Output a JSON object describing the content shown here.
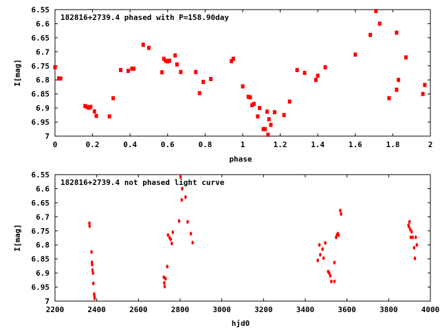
{
  "chart_data": [
    {
      "type": "scatter",
      "title": "182816+2739.4 phased with P=158.90day",
      "xlabel": "phase",
      "ylabel": "I[mag]",
      "xlim": [
        0,
        2
      ],
      "ylim": [
        7,
        6.55
      ],
      "y_inverted": true,
      "grid": false,
      "legend": "none",
      "xticks": [
        0,
        0.2,
        0.4,
        0.6,
        0.8,
        1,
        1.2,
        1.4,
        1.6,
        1.8,
        2
      ],
      "xtick_labels": [
        "0",
        "0.2",
        "0.4",
        "0.6",
        "0.8",
        "1",
        "1.2",
        "1.4",
        "1.6",
        "1.8",
        "2"
      ],
      "yticks": [
        6.55,
        6.6,
        6.65,
        6.7,
        6.75,
        6.8,
        6.85,
        6.9,
        6.95,
        7
      ],
      "ytick_labels": [
        "6.55",
        "6.6",
        "6.65",
        "6.7",
        "6.75",
        "6.8",
        "6.85",
        "6.9",
        "6.95",
        "7"
      ],
      "marker": "filled-square",
      "color": "#ff0000",
      "points": [
        [
          0.0,
          6.755
        ],
        [
          0.02,
          6.795
        ],
        [
          0.03,
          6.795
        ],
        [
          0.16,
          6.893
        ],
        [
          0.17,
          6.896
        ],
        [
          0.18,
          6.899
        ],
        [
          0.19,
          6.896
        ],
        [
          0.21,
          6.912
        ],
        [
          0.22,
          6.928
        ],
        [
          0.29,
          6.93
        ],
        [
          0.31,
          6.865
        ],
        [
          0.35,
          6.765
        ],
        [
          0.39,
          6.768
        ],
        [
          0.41,
          6.76
        ],
        [
          0.42,
          6.76
        ],
        [
          0.47,
          6.675
        ],
        [
          0.5,
          6.686
        ],
        [
          0.57,
          6.773
        ],
        [
          0.58,
          6.725
        ],
        [
          0.59,
          6.732
        ],
        [
          0.6,
          6.734
        ],
        [
          0.61,
          6.732
        ],
        [
          0.64,
          6.713
        ],
        [
          0.65,
          6.745
        ],
        [
          0.67,
          6.772
        ],
        [
          0.75,
          6.772
        ],
        [
          0.77,
          6.847
        ],
        [
          0.79,
          6.807
        ],
        [
          0.83,
          6.797
        ],
        [
          0.94,
          6.733
        ],
        [
          0.95,
          6.725
        ],
        [
          1.0,
          6.823
        ],
        [
          1.03,
          6.86
        ],
        [
          1.04,
          6.862
        ],
        [
          1.05,
          6.89
        ],
        [
          1.06,
          6.885
        ],
        [
          1.08,
          6.93
        ],
        [
          1.09,
          6.9
        ],
        [
          1.11,
          6.975
        ],
        [
          1.12,
          6.975
        ],
        [
          1.13,
          6.913
        ],
        [
          1.135,
          6.995
        ],
        [
          1.14,
          6.94
        ],
        [
          1.15,
          6.96
        ],
        [
          1.17,
          6.915
        ],
        [
          1.22,
          6.925
        ],
        [
          1.25,
          6.877
        ],
        [
          1.29,
          6.765
        ],
        [
          1.33,
          6.775
        ],
        [
          1.39,
          6.8
        ],
        [
          1.4,
          6.785
        ],
        [
          1.44,
          6.755
        ],
        [
          1.6,
          6.71
        ],
        [
          1.68,
          6.64
        ],
        [
          1.71,
          6.555
        ],
        [
          1.73,
          6.6
        ],
        [
          1.78,
          6.865
        ],
        [
          1.82,
          6.632
        ],
        [
          1.82,
          6.835
        ],
        [
          1.83,
          6.8
        ],
        [
          1.87,
          6.72
        ],
        [
          1.96,
          6.85
        ],
        [
          1.97,
          6.818
        ]
      ]
    },
    {
      "type": "scatter",
      "title": "182816+2739.4 not phased light curve",
      "xlabel": "hjd0",
      "ylabel": "I[mag]",
      "xlim": [
        2200,
        4000
      ],
      "ylim": [
        7,
        6.55
      ],
      "y_inverted": true,
      "grid": false,
      "legend": "none",
      "xticks": [
        2200,
        2400,
        2600,
        2800,
        3000,
        3200,
        3400,
        3600,
        3800,
        4000
      ],
      "xtick_labels": [
        "2200",
        "2400",
        "2600",
        "2800",
        "3000",
        "3200",
        "3400",
        "3600",
        "3800",
        "4000"
      ],
      "yticks": [
        6.55,
        6.6,
        6.65,
        6.7,
        6.75,
        6.8,
        6.85,
        6.9,
        6.95,
        7
      ],
      "ytick_labels": [
        "6.55",
        "6.6",
        "6.65",
        "6.7",
        "6.75",
        "6.8",
        "6.85",
        "6.9",
        "6.95",
        "7"
      ],
      "marker": "small-diamond",
      "color": "#ff0000",
      "points": [
        [
          2365,
          6.723
        ],
        [
          2366,
          6.733
        ],
        [
          2375,
          6.825
        ],
        [
          2377,
          6.862
        ],
        [
          2378,
          6.87
        ],
        [
          2380,
          6.89
        ],
        [
          2382,
          6.9
        ],
        [
          2384,
          6.937
        ],
        [
          2388,
          6.975
        ],
        [
          2389,
          6.982
        ],
        [
          2390,
          6.99
        ],
        [
          2722,
          6.915
        ],
        [
          2724,
          6.935
        ],
        [
          2726,
          6.948
        ],
        [
          2730,
          6.92
        ],
        [
          2738,
          6.877
        ],
        [
          2742,
          6.765
        ],
        [
          2750,
          6.775
        ],
        [
          2755,
          6.78
        ],
        [
          2760,
          6.795
        ],
        [
          2765,
          6.755
        ],
        [
          2795,
          6.715
        ],
        [
          2802,
          6.558
        ],
        [
          2808,
          6.64
        ],
        [
          2810,
          6.6
        ],
        [
          2826,
          6.63
        ],
        [
          2836,
          6.718
        ],
        [
          2852,
          6.76
        ],
        [
          2860,
          6.792
        ],
        [
          3460,
          6.855
        ],
        [
          3468,
          6.8
        ],
        [
          3472,
          6.835
        ],
        [
          3483,
          6.815
        ],
        [
          3488,
          6.847
        ],
        [
          3496,
          6.793
        ],
        [
          3510,
          6.895
        ],
        [
          3515,
          6.9
        ],
        [
          3520,
          6.91
        ],
        [
          3525,
          6.93
        ],
        [
          3540,
          6.863
        ],
        [
          3548,
          6.773
        ],
        [
          3552,
          6.765
        ],
        [
          3556,
          6.76
        ],
        [
          3560,
          6.765
        ],
        [
          3568,
          6.678
        ],
        [
          3572,
          6.69
        ],
        [
          3540,
          6.93
        ],
        [
          3895,
          6.73
        ],
        [
          3897,
          6.735
        ],
        [
          3900,
          6.718
        ],
        [
          3904,
          6.745
        ],
        [
          3906,
          6.773
        ],
        [
          3910,
          6.753
        ],
        [
          3915,
          6.773
        ],
        [
          3922,
          6.81
        ],
        [
          3926,
          6.848
        ],
        [
          3930,
          6.773
        ],
        [
          3935,
          6.8
        ]
      ]
    }
  ]
}
